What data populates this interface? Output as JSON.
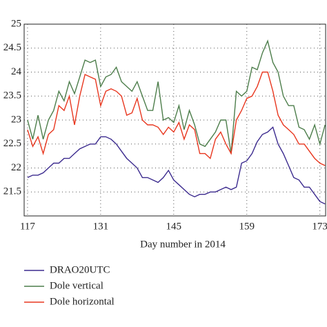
{
  "chart_data": {
    "type": "line",
    "xlabel": "Day number in 2014",
    "x": [
      117,
      118,
      119,
      120,
      121,
      122,
      123,
      124,
      125,
      126,
      127,
      128,
      129,
      130,
      131,
      132,
      133,
      134,
      135,
      136,
      137,
      138,
      139,
      140,
      141,
      142,
      143,
      144,
      145,
      146,
      147,
      148,
      149,
      150,
      151,
      152,
      153,
      154,
      155,
      156,
      157,
      158,
      159,
      160,
      161,
      162,
      163,
      164,
      165,
      166,
      167,
      168,
      169,
      170,
      171,
      172,
      173,
      174
    ],
    "series": [
      {
        "name": "DRAO20UTC",
        "color": "#3b2a8e",
        "values": [
          21.8,
          21.85,
          21.85,
          21.9,
          22.0,
          22.1,
          22.1,
          22.2,
          22.2,
          22.3,
          22.4,
          22.45,
          22.5,
          22.5,
          22.65,
          22.65,
          22.6,
          22.5,
          22.35,
          22.2,
          22.1,
          22.0,
          21.8,
          21.8,
          21.75,
          21.7,
          21.8,
          21.95,
          21.75,
          21.65,
          21.55,
          21.45,
          21.4,
          21.45,
          21.45,
          21.5,
          21.5,
          21.55,
          21.6,
          21.55,
          21.6,
          22.1,
          22.15,
          22.3,
          22.55,
          22.7,
          22.75,
          22.85,
          22.5,
          22.3,
          22.05,
          21.8,
          21.75,
          21.6,
          21.6,
          21.45,
          21.3,
          21.25
        ]
      },
      {
        "name": "Dole vertical",
        "color": "#4c7d4a",
        "values": [
          23.0,
          22.6,
          23.1,
          22.6,
          23.0,
          23.2,
          23.6,
          23.4,
          23.8,
          23.55,
          23.9,
          24.25,
          24.2,
          24.25,
          23.7,
          23.9,
          23.95,
          24.1,
          23.8,
          23.7,
          23.6,
          23.8,
          23.5,
          23.2,
          23.2,
          23.8,
          23.0,
          23.05,
          22.95,
          23.3,
          22.8,
          23.2,
          22.9,
          22.5,
          22.45,
          22.6,
          22.75,
          23.0,
          23.0,
          22.3,
          23.6,
          23.5,
          23.6,
          24.1,
          24.05,
          24.4,
          24.65,
          24.2,
          24.0,
          23.5,
          23.3,
          23.3,
          22.85,
          22.8,
          22.6,
          22.9,
          22.5,
          22.9
        ]
      },
      {
        "name": "Dole horizontal",
        "color": "#e8361e",
        "values": [
          22.8,
          22.45,
          22.65,
          22.3,
          22.7,
          22.8,
          23.3,
          23.2,
          23.5,
          22.9,
          23.5,
          23.95,
          23.9,
          23.85,
          23.3,
          23.6,
          23.65,
          23.6,
          23.5,
          23.1,
          23.15,
          23.45,
          23.0,
          22.9,
          22.9,
          22.85,
          22.7,
          22.85,
          22.75,
          22.95,
          22.6,
          22.9,
          22.8,
          22.3,
          22.3,
          22.2,
          22.6,
          22.75,
          22.5,
          22.3,
          23.0,
          23.2,
          23.45,
          23.5,
          23.7,
          24.0,
          24.0,
          23.6,
          23.1,
          22.9,
          22.8,
          22.7,
          22.5,
          22.5,
          22.35,
          22.2,
          22.1,
          22.05
        ]
      }
    ],
    "xlim": [
      116.35,
      174.1
    ],
    "xticks": [
      117,
      131,
      145,
      159,
      173
    ],
    "ylim": [
      21,
      25
    ],
    "yticks": [
      21.5,
      22,
      22.5,
      23,
      23.5,
      24,
      24.5,
      25
    ],
    "grid": true
  }
}
